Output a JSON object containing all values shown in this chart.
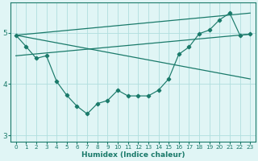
{
  "zigzag_x": [
    0,
    1,
    2,
    3,
    4,
    5,
    6,
    7,
    8,
    9,
    10,
    11,
    12,
    13,
    14,
    15,
    16,
    17,
    18,
    19,
    20,
    21,
    22,
    23
  ],
  "zigzag_y": [
    4.95,
    4.73,
    4.5,
    4.55,
    4.05,
    3.78,
    3.57,
    3.42,
    3.62,
    3.68,
    3.88,
    3.77,
    3.77,
    3.77,
    3.88,
    4.1,
    4.58,
    4.72,
    4.98,
    5.05,
    5.25,
    5.38,
    4.95,
    4.97
  ],
  "upper_line_x": [
    0,
    23
  ],
  "upper_line_y": [
    4.95,
    5.38
  ],
  "lower_line_x": [
    0,
    23
  ],
  "lower_line_y": [
    4.55,
    4.97
  ],
  "cross_line_x": [
    0,
    23
  ],
  "cross_line_y": [
    4.95,
    4.1
  ],
  "color": "#1a7a6a",
  "bg_color": "#e0f5f5",
  "grid_color": "#b0dede",
  "xlabel": "Humidex (Indice chaleur)",
  "xlim": [
    -0.5,
    23.5
  ],
  "ylim": [
    2.88,
    5.58
  ],
  "yticks": [
    3,
    4,
    5
  ],
  "xticks": [
    0,
    1,
    2,
    3,
    4,
    5,
    6,
    7,
    8,
    9,
    10,
    11,
    12,
    13,
    14,
    15,
    16,
    17,
    18,
    19,
    20,
    21,
    22,
    23
  ]
}
